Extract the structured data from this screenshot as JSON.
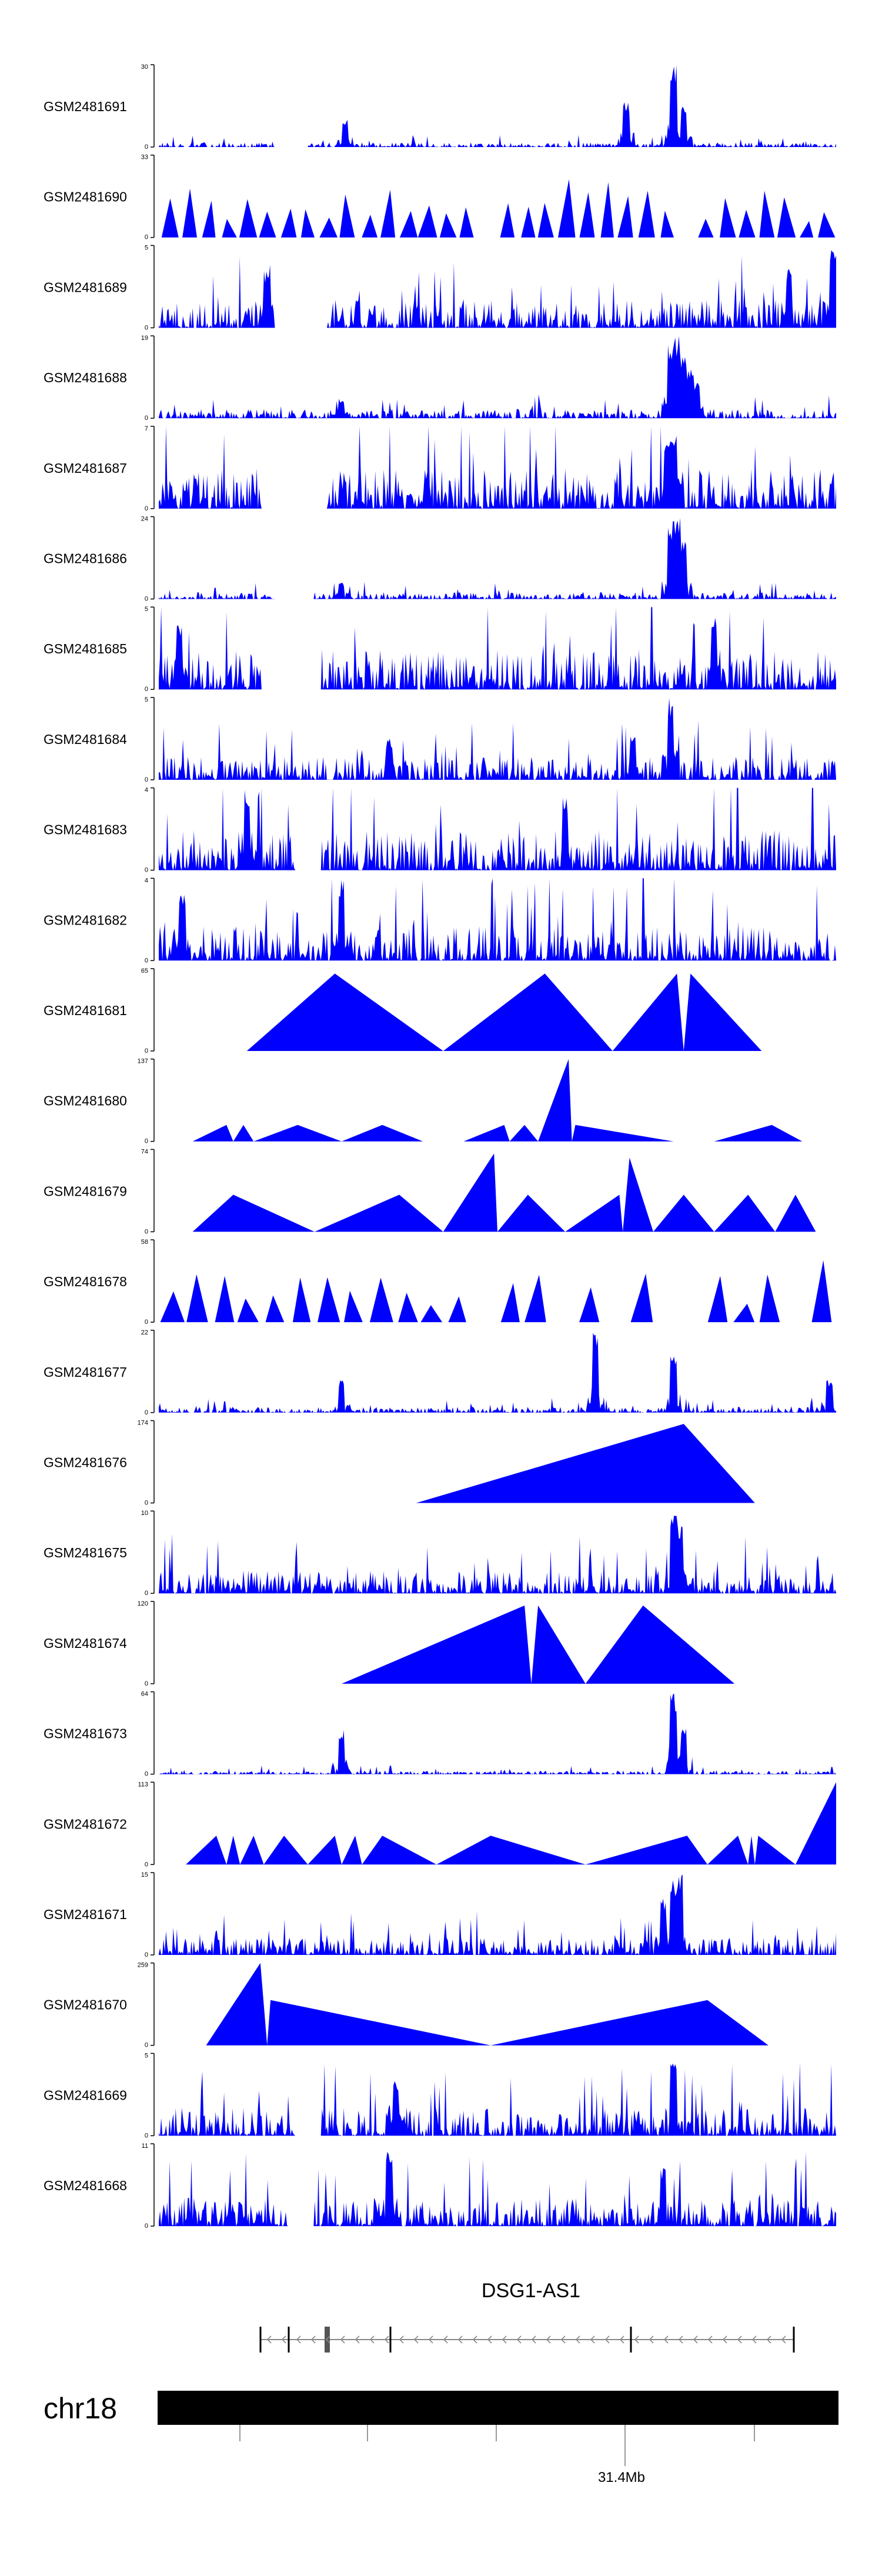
{
  "colors": {
    "signal": "#0000ff",
    "axis": "#000000",
    "background": "#ffffff",
    "gene_line": "#888888",
    "chrom_bar": "#000000"
  },
  "gene": {
    "name": "DSG1-AS1",
    "strand": "-"
  },
  "chromosome": {
    "name": "chr18",
    "tick_label": "31.4Mb"
  },
  "chart_data": {
    "type": "area",
    "title": "",
    "xlabel": "",
    "ylabel": "",
    "x_range": [
      0,
      100
    ],
    "x_unit": "percent of displayed region",
    "grid": false,
    "series": [
      {
        "name": "GSM2481691",
        "ylim": [
          0,
          30
        ],
        "pattern": "dense",
        "baseline": 0.04,
        "peaks": [
          [
            27.5,
            0.35
          ],
          [
            69.0,
            0.55
          ],
          [
            76.0,
            1.0
          ],
          [
            77.5,
            0.5
          ]
        ],
        "gaps": [
          [
            17,
            22
          ]
        ]
      },
      {
        "name": "GSM2481690",
        "ylim": [
          0,
          33
        ],
        "pattern": "sparse",
        "count": 34
      },
      {
        "name": "GSM2481689",
        "ylim": [
          0,
          5
        ],
        "pattern": "dense",
        "baseline": 0.25,
        "peaks": [
          [
            16.0,
            0.7
          ],
          [
            99.5,
            1.0
          ],
          [
            93.0,
            0.75
          ]
        ],
        "gaps": [
          [
            17,
            25
          ]
        ]
      },
      {
        "name": "GSM2481688",
        "ylim": [
          0,
          19
        ],
        "pattern": "dense",
        "baseline": 0.08,
        "peaks": [
          [
            75.5,
            0.9
          ],
          [
            76.5,
            1.0
          ],
          [
            77.5,
            0.8
          ],
          [
            78.5,
            0.6
          ],
          [
            79.5,
            0.45
          ],
          [
            27.0,
            0.25
          ]
        ],
        "gaps": []
      },
      {
        "name": "GSM2481687",
        "ylim": [
          0,
          7
        ],
        "pattern": "dense",
        "baseline": 0.35,
        "peaks": [
          [
            76.0,
            1.0
          ],
          [
            75.0,
            0.8
          ]
        ],
        "gaps": [
          [
            15,
            25
          ]
        ]
      },
      {
        "name": "GSM2481686",
        "ylim": [
          0,
          24
        ],
        "pattern": "dense",
        "baseline": 0.06,
        "peaks": [
          [
            75.5,
            0.95
          ],
          [
            76.5,
            1.0
          ],
          [
            77.5,
            0.7
          ],
          [
            27.0,
            0.2
          ]
        ],
        "gaps": [
          [
            17,
            23
          ]
        ]
      },
      {
        "name": "GSM2481685",
        "ylim": [
          0,
          5
        ],
        "pattern": "dense",
        "baseline": 0.35,
        "peaks": [
          [
            82.0,
            1.0
          ],
          [
            3.0,
            0.8
          ]
        ],
        "gaps": [
          [
            15,
            24
          ]
        ]
      },
      {
        "name": "GSM2481684",
        "ylim": [
          0,
          5
        ],
        "pattern": "dense",
        "baseline": 0.2,
        "peaks": [
          [
            75.5,
            1.0
          ],
          [
            70.0,
            0.55
          ],
          [
            34.0,
            0.5
          ]
        ],
        "gaps": []
      },
      {
        "name": "GSM2481683",
        "ylim": [
          0,
          4
        ],
        "pattern": "dense",
        "baseline": 0.35,
        "peaks": [
          [
            13.0,
            1.0
          ],
          [
            60.0,
            0.9
          ]
        ],
        "gaps": [
          [
            20,
            24
          ]
        ]
      },
      {
        "name": "GSM2481682",
        "ylim": [
          0,
          4
        ],
        "pattern": "dense",
        "baseline": 0.3,
        "peaks": [
          [
            27.0,
            1.0
          ],
          [
            3.5,
            0.8
          ]
        ],
        "gaps": []
      },
      {
        "name": "GSM2481681",
        "ylim": [
          0,
          65
        ],
        "pattern": "triangles",
        "triangles": [
          [
            13,
            26,
            42,
            0.94
          ],
          [
            42,
            57,
            67,
            0.94
          ],
          [
            67,
            76.5,
            77.5,
            0.94
          ],
          [
            77.5,
            78.5,
            89,
            0.94
          ]
        ]
      },
      {
        "name": "GSM2481680",
        "ylim": [
          0,
          137
        ],
        "pattern": "triangles",
        "triangles": [
          [
            5,
            10,
            11,
            0.2
          ],
          [
            11,
            12.5,
            14,
            0.2
          ],
          [
            14,
            20.5,
            27,
            0.2
          ],
          [
            27,
            33,
            39,
            0.2
          ],
          [
            45,
            51,
            51.8,
            0.2
          ],
          [
            51.8,
            54,
            56,
            0.2
          ],
          [
            56,
            60.5,
            61,
            1.0
          ],
          [
            61,
            61.5,
            76,
            0.2
          ],
          [
            82,
            90.5,
            95,
            0.2
          ]
        ]
      },
      {
        "name": "GSM2481679",
        "ylim": [
          0,
          74
        ],
        "pattern": "triangles",
        "triangles": [
          [
            5,
            11,
            23,
            0.45
          ],
          [
            23,
            35.5,
            42,
            0.45
          ],
          [
            42,
            49.5,
            50,
            0.95
          ],
          [
            50,
            54.5,
            60,
            0.45
          ],
          [
            60,
            68,
            68.5,
            0.45
          ],
          [
            68.5,
            69.5,
            73,
            0.9
          ],
          [
            73,
            77.5,
            82,
            0.45
          ],
          [
            82,
            87,
            91,
            0.45
          ],
          [
            91,
            94,
            97,
            0.45
          ]
        ]
      },
      {
        "name": "GSM2481678",
        "ylim": [
          0,
          58
        ],
        "pattern": "sparse",
        "count": 26
      },
      {
        "name": "GSM2481677",
        "ylim": [
          0,
          22
        ],
        "pattern": "dense",
        "baseline": 0.05,
        "peaks": [
          [
            64.5,
            1.0
          ],
          [
            76.0,
            0.75
          ],
          [
            27.0,
            0.4
          ],
          [
            99.0,
            0.4
          ]
        ],
        "gaps": []
      },
      {
        "name": "GSM2481676",
        "ylim": [
          0,
          174
        ],
        "pattern": "triangles",
        "triangles": [
          [
            38,
            77.5,
            88,
            0.96
          ]
        ]
      },
      {
        "name": "GSM2481675",
        "ylim": [
          0,
          10
        ],
        "pattern": "dense",
        "baseline": 0.2,
        "peaks": [
          [
            76.0,
            1.0
          ],
          [
            77.0,
            0.85
          ]
        ],
        "gaps": []
      },
      {
        "name": "GSM2481674",
        "ylim": [
          0,
          120
        ],
        "pattern": "triangles",
        "triangles": [
          [
            27,
            54,
            55,
            0.95
          ],
          [
            55,
            56,
            63,
            0.95
          ],
          [
            63,
            71.5,
            85,
            0.95
          ]
        ]
      },
      {
        "name": "GSM2481673",
        "ylim": [
          0,
          64
        ],
        "pattern": "dense",
        "baseline": 0.03,
        "peaks": [
          [
            27.0,
            0.55
          ],
          [
            76.0,
            1.0
          ],
          [
            77.5,
            0.6
          ]
        ],
        "gaps": []
      },
      {
        "name": "GSM2481672",
        "ylim": [
          0,
          113
        ],
        "pattern": "triangles",
        "triangles": [
          [
            4,
            8.5,
            10,
            0.35
          ],
          [
            10,
            11,
            12,
            0.35
          ],
          [
            12,
            14,
            15.5,
            0.35
          ],
          [
            15.5,
            18.5,
            22,
            0.35
          ],
          [
            22,
            26,
            27,
            0.35
          ],
          [
            27,
            29,
            30,
            0.35
          ],
          [
            30,
            33,
            41,
            0.35
          ],
          [
            41,
            49,
            63,
            0.35
          ],
          [
            63,
            78,
            81,
            0.35
          ],
          [
            81,
            85.5,
            87,
            0.35
          ],
          [
            87,
            87.5,
            88,
            0.35
          ],
          [
            88,
            88.5,
            94,
            0.35
          ],
          [
            94,
            100,
            100,
            1.0
          ]
        ]
      },
      {
        "name": "GSM2481671",
        "ylim": [
          0,
          15
        ],
        "pattern": "dense",
        "baseline": 0.15,
        "peaks": [
          [
            76.0,
            0.95
          ],
          [
            77.0,
            1.0
          ],
          [
            74.5,
            0.7
          ]
        ],
        "gaps": []
      },
      {
        "name": "GSM2481670",
        "ylim": [
          0,
          259
        ],
        "pattern": "triangles",
        "triangles": [
          [
            7,
            15,
            16,
            1.0
          ],
          [
            16,
            16.5,
            49,
            0.55
          ],
          [
            49,
            81,
            90,
            0.55
          ]
        ]
      },
      {
        "name": "GSM2481669",
        "ylim": [
          0,
          5
        ],
        "pattern": "dense",
        "baseline": 0.25,
        "peaks": [
          [
            76.0,
            1.0
          ],
          [
            35.0,
            0.7
          ]
        ],
        "gaps": [
          [
            20,
            24
          ]
        ]
      },
      {
        "name": "GSM2481668",
        "ylim": [
          0,
          11
        ],
        "pattern": "dense",
        "baseline": 0.25,
        "peaks": [
          [
            34.0,
            1.0
          ],
          [
            74.5,
            0.7
          ]
        ],
        "gaps": [
          [
            19,
            23
          ]
        ]
      }
    ]
  }
}
